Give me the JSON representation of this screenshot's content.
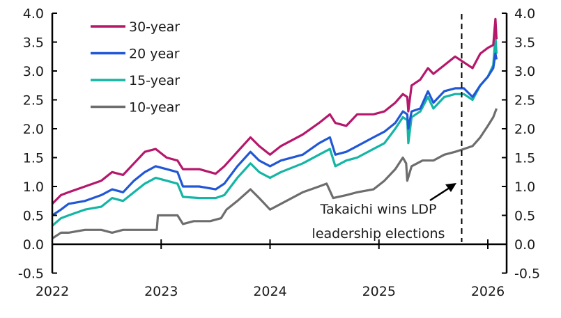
{
  "chart_data": {
    "type": "line",
    "title": "",
    "xlabel": "",
    "ylabel": "",
    "xlim": [
      2022,
      2026.2
    ],
    "ylim": [
      -0.5,
      4.0
    ],
    "x_ticks": [
      "2022",
      "2023",
      "2024",
      "2025",
      "2026"
    ],
    "y_ticks": [
      "4.0",
      "3.5",
      "3.0",
      "2.5",
      "2.0",
      "1.5",
      "1.0",
      "0.5",
      "0.0",
      "-0.5"
    ],
    "y_tick_values": [
      4.0,
      3.5,
      3.0,
      2.5,
      2.0,
      1.5,
      1.0,
      0.5,
      0.0,
      -0.5
    ],
    "grid": false,
    "legend_position": "top-left",
    "secondary_y_axis": "mirrors left axis",
    "series": [
      {
        "name": "30-year",
        "color": "#b5176b",
        "points": [
          [
            2022.0,
            0.7
          ],
          [
            2022.08,
            0.85
          ],
          [
            2022.15,
            0.9
          ],
          [
            2022.3,
            1.0
          ],
          [
            2022.45,
            1.1
          ],
          [
            2022.55,
            1.25
          ],
          [
            2022.65,
            1.2
          ],
          [
            2022.75,
            1.4
          ],
          [
            2022.85,
            1.6
          ],
          [
            2022.95,
            1.65
          ],
          [
            2023.05,
            1.5
          ],
          [
            2023.15,
            1.45
          ],
          [
            2023.2,
            1.3
          ],
          [
            2023.35,
            1.3
          ],
          [
            2023.5,
            1.22
          ],
          [
            2023.58,
            1.35
          ],
          [
            2023.7,
            1.6
          ],
          [
            2023.82,
            1.85
          ],
          [
            2023.9,
            1.7
          ],
          [
            2024.0,
            1.55
          ],
          [
            2024.1,
            1.7
          ],
          [
            2024.3,
            1.9
          ],
          [
            2024.45,
            2.1
          ],
          [
            2024.55,
            2.25
          ],
          [
            2024.6,
            2.1
          ],
          [
            2024.7,
            2.05
          ],
          [
            2024.8,
            2.25
          ],
          [
            2024.95,
            2.25
          ],
          [
            2025.05,
            2.3
          ],
          [
            2025.15,
            2.45
          ],
          [
            2025.22,
            2.6
          ],
          [
            2025.26,
            2.55
          ],
          [
            2025.27,
            2.3
          ],
          [
            2025.3,
            2.75
          ],
          [
            2025.38,
            2.85
          ],
          [
            2025.45,
            3.05
          ],
          [
            2025.5,
            2.95
          ],
          [
            2025.6,
            3.1
          ],
          [
            2025.7,
            3.25
          ],
          [
            2025.78,
            3.15
          ],
          [
            2025.86,
            3.05
          ],
          [
            2025.93,
            3.3
          ],
          [
            2026.0,
            3.4
          ],
          [
            2026.05,
            3.45
          ],
          [
            2026.07,
            3.9
          ],
          [
            2026.08,
            3.55
          ]
        ]
      },
      {
        "name": "20 year",
        "color": "#2057d6",
        "points": [
          [
            2022.0,
            0.5
          ],
          [
            2022.08,
            0.6
          ],
          [
            2022.15,
            0.7
          ],
          [
            2022.3,
            0.75
          ],
          [
            2022.45,
            0.85
          ],
          [
            2022.55,
            0.95
          ],
          [
            2022.65,
            0.9
          ],
          [
            2022.75,
            1.1
          ],
          [
            2022.85,
            1.25
          ],
          [
            2022.95,
            1.35
          ],
          [
            2023.05,
            1.3
          ],
          [
            2023.15,
            1.25
          ],
          [
            2023.2,
            1.0
          ],
          [
            2023.35,
            1.0
          ],
          [
            2023.5,
            0.95
          ],
          [
            2023.58,
            1.05
          ],
          [
            2023.7,
            1.35
          ],
          [
            2023.82,
            1.6
          ],
          [
            2023.9,
            1.45
          ],
          [
            2024.0,
            1.35
          ],
          [
            2024.1,
            1.45
          ],
          [
            2024.3,
            1.55
          ],
          [
            2024.45,
            1.75
          ],
          [
            2024.55,
            1.85
          ],
          [
            2024.6,
            1.55
          ],
          [
            2024.7,
            1.6
          ],
          [
            2024.8,
            1.7
          ],
          [
            2024.95,
            1.85
          ],
          [
            2025.05,
            1.95
          ],
          [
            2025.15,
            2.1
          ],
          [
            2025.22,
            2.3
          ],
          [
            2025.26,
            2.25
          ],
          [
            2025.27,
            2.0
          ],
          [
            2025.3,
            2.3
          ],
          [
            2025.38,
            2.35
          ],
          [
            2025.45,
            2.65
          ],
          [
            2025.5,
            2.45
          ],
          [
            2025.6,
            2.65
          ],
          [
            2025.7,
            2.7
          ],
          [
            2025.78,
            2.7
          ],
          [
            2025.86,
            2.55
          ],
          [
            2025.93,
            2.75
          ],
          [
            2026.0,
            2.9
          ],
          [
            2026.05,
            3.05
          ],
          [
            2026.07,
            3.3
          ],
          [
            2026.08,
            3.2
          ]
        ]
      },
      {
        "name": "15-year",
        "color": "#14b5a5",
        "points": [
          [
            2022.0,
            0.32
          ],
          [
            2022.08,
            0.45
          ],
          [
            2022.15,
            0.5
          ],
          [
            2022.3,
            0.6
          ],
          [
            2022.45,
            0.65
          ],
          [
            2022.55,
            0.8
          ],
          [
            2022.65,
            0.75
          ],
          [
            2022.75,
            0.9
          ],
          [
            2022.85,
            1.05
          ],
          [
            2022.95,
            1.15
          ],
          [
            2023.05,
            1.1
          ],
          [
            2023.15,
            1.05
          ],
          [
            2023.2,
            0.82
          ],
          [
            2023.35,
            0.8
          ],
          [
            2023.5,
            0.8
          ],
          [
            2023.58,
            0.85
          ],
          [
            2023.7,
            1.15
          ],
          [
            2023.82,
            1.4
          ],
          [
            2023.9,
            1.25
          ],
          [
            2024.0,
            1.15
          ],
          [
            2024.1,
            1.25
          ],
          [
            2024.3,
            1.4
          ],
          [
            2024.45,
            1.55
          ],
          [
            2024.55,
            1.65
          ],
          [
            2024.6,
            1.35
          ],
          [
            2024.7,
            1.45
          ],
          [
            2024.8,
            1.5
          ],
          [
            2024.95,
            1.65
          ],
          [
            2025.05,
            1.75
          ],
          [
            2025.15,
            2.0
          ],
          [
            2025.22,
            2.2
          ],
          [
            2025.26,
            2.15
          ],
          [
            2025.27,
            1.75
          ],
          [
            2025.3,
            2.2
          ],
          [
            2025.38,
            2.3
          ],
          [
            2025.45,
            2.55
          ],
          [
            2025.5,
            2.35
          ],
          [
            2025.6,
            2.55
          ],
          [
            2025.7,
            2.6
          ],
          [
            2025.78,
            2.6
          ],
          [
            2025.86,
            2.5
          ],
          [
            2025.93,
            2.75
          ],
          [
            2026.0,
            2.9
          ],
          [
            2026.05,
            3.1
          ],
          [
            2026.07,
            3.6
          ],
          [
            2026.08,
            3.3
          ]
        ]
      },
      {
        "name": "10-year",
        "color": "#6d6d6d",
        "points": [
          [
            2022.0,
            0.1
          ],
          [
            2022.08,
            0.2
          ],
          [
            2022.15,
            0.2
          ],
          [
            2022.3,
            0.25
          ],
          [
            2022.45,
            0.25
          ],
          [
            2022.55,
            0.2
          ],
          [
            2022.65,
            0.25
          ],
          [
            2022.85,
            0.25
          ],
          [
            2022.96,
            0.25
          ],
          [
            2022.97,
            0.5
          ],
          [
            2023.05,
            0.5
          ],
          [
            2023.15,
            0.5
          ],
          [
            2023.2,
            0.35
          ],
          [
            2023.3,
            0.4
          ],
          [
            2023.45,
            0.4
          ],
          [
            2023.55,
            0.45
          ],
          [
            2023.6,
            0.6
          ],
          [
            2023.7,
            0.75
          ],
          [
            2023.82,
            0.95
          ],
          [
            2023.9,
            0.8
          ],
          [
            2024.0,
            0.6
          ],
          [
            2024.1,
            0.7
          ],
          [
            2024.3,
            0.9
          ],
          [
            2024.45,
            1.0
          ],
          [
            2024.52,
            1.05
          ],
          [
            2024.58,
            0.8
          ],
          [
            2024.7,
            0.85
          ],
          [
            2024.8,
            0.9
          ],
          [
            2024.95,
            0.95
          ],
          [
            2025.05,
            1.1
          ],
          [
            2025.15,
            1.3
          ],
          [
            2025.22,
            1.5
          ],
          [
            2025.25,
            1.4
          ],
          [
            2025.26,
            1.1
          ],
          [
            2025.3,
            1.35
          ],
          [
            2025.4,
            1.45
          ],
          [
            2025.5,
            1.45
          ],
          [
            2025.6,
            1.55
          ],
          [
            2025.7,
            1.6
          ],
          [
            2025.78,
            1.65
          ],
          [
            2025.86,
            1.7
          ],
          [
            2025.93,
            1.85
          ],
          [
            2026.0,
            2.05
          ],
          [
            2026.05,
            2.2
          ],
          [
            2026.08,
            2.35
          ]
        ]
      }
    ],
    "annotations": {
      "event_line_x": 2025.76,
      "event_text_line1": "Takaichi wins LDP",
      "event_text_line2": "leadership elections"
    }
  }
}
